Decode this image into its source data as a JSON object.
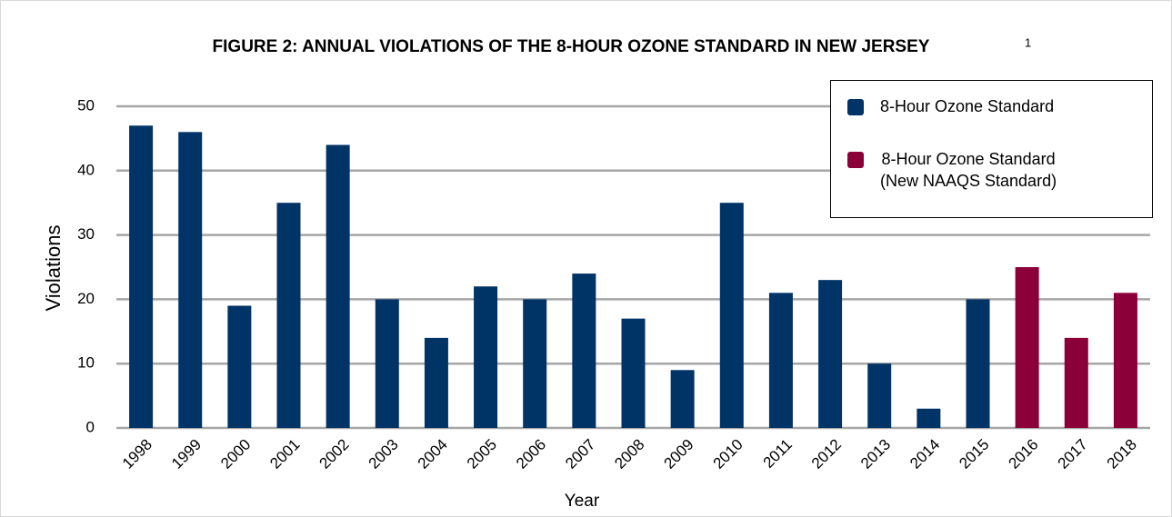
{
  "chart_data": {
    "type": "bar",
    "title": "FIGURE 2: ANNUAL VIOLATIONS OF THE 8-HOUR OZONE STANDARD IN NEW JERSEY",
    "title_note": "1",
    "x_label": "Year",
    "y_label": "Violations",
    "categories": [
      "1998",
      "1999",
      "2000",
      "2001",
      "2002",
      "2003",
      "2004",
      "2005",
      "2006",
      "2007",
      "2008",
      "2009",
      "2010",
      "2011",
      "2012",
      "2013",
      "2014",
      "2015",
      "2016",
      "2017",
      "2018"
    ],
    "series": [
      {
        "name": "8-Hour Ozone Standard",
        "color": "#003366",
        "values": [
          47,
          46,
          19,
          35,
          44,
          20,
          14,
          22,
          20,
          24,
          17,
          9,
          35,
          21,
          23,
          10,
          3,
          20,
          null,
          null,
          null
        ]
      },
      {
        "name": "8-Hour Ozone  Standard\n(New NAAQS Standard)",
        "color": "#8b0038",
        "values": [
          null,
          null,
          null,
          null,
          null,
          null,
          null,
          null,
          null,
          null,
          null,
          null,
          null,
          null,
          null,
          null,
          null,
          null,
          25,
          14,
          21
        ]
      }
    ],
    "ylim": [
      0,
      50
    ],
    "yticks": [
      0,
      10,
      20,
      30,
      40,
      50
    ],
    "grid": true,
    "legend": "upper right"
  }
}
